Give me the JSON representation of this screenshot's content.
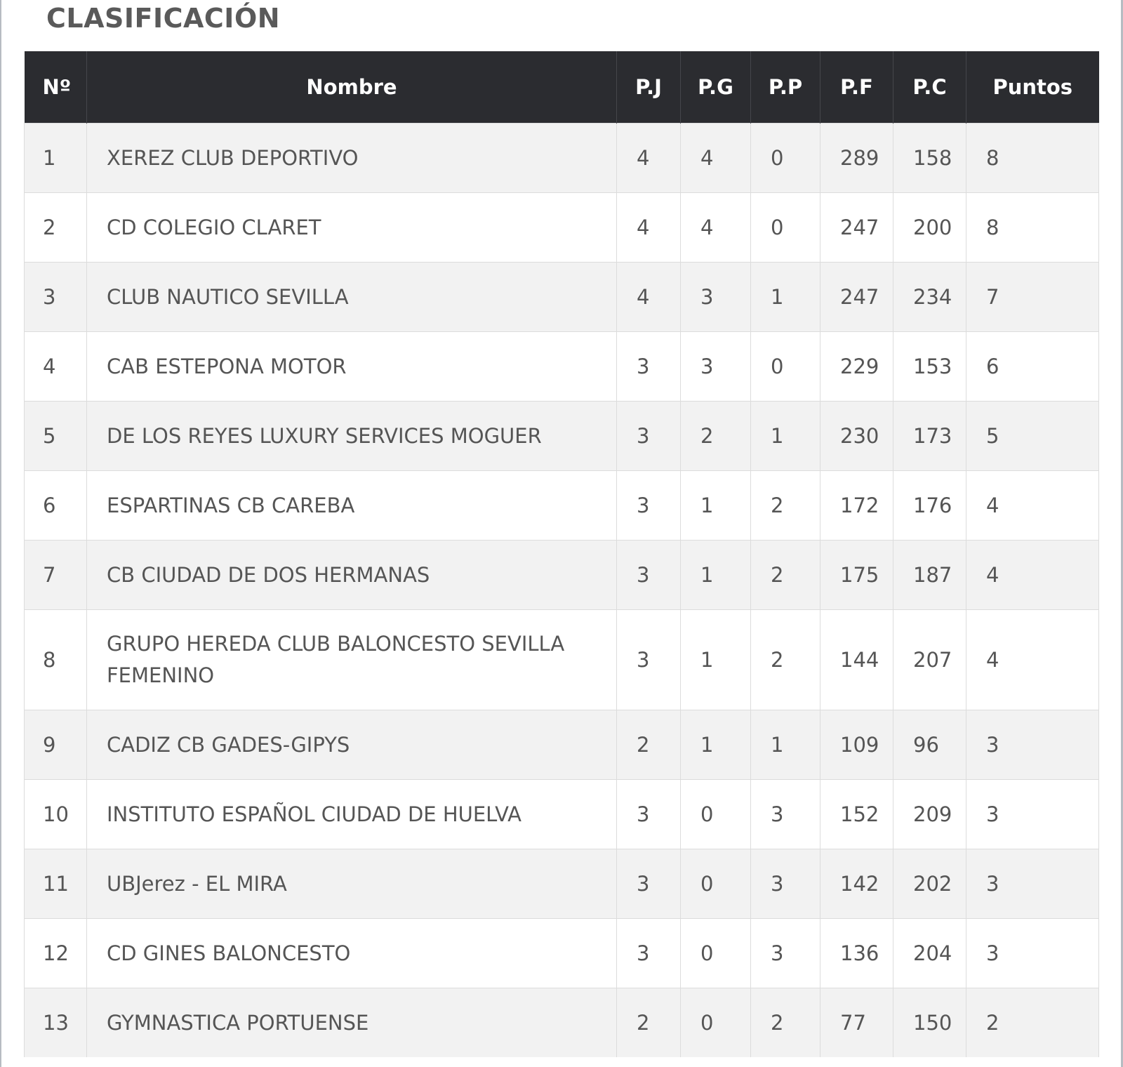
{
  "title": "CLASIFICACIÓN",
  "table": {
    "headers": [
      "Nº",
      "Nombre",
      "P.J",
      "P.G",
      "P.P",
      "P.F",
      "P.C",
      "Puntos"
    ],
    "rows": [
      [
        "1",
        "XEREZ CLUB DEPORTIVO",
        "4",
        "4",
        "0",
        "289",
        "158",
        "8"
      ],
      [
        "2",
        "CD COLEGIO CLARET",
        "4",
        "4",
        "0",
        "247",
        "200",
        "8"
      ],
      [
        "3",
        "CLUB NAUTICO SEVILLA",
        "4",
        "3",
        "1",
        "247",
        "234",
        "7"
      ],
      [
        "4",
        "CAB ESTEPONA MOTOR",
        "3",
        "3",
        "0",
        "229",
        "153",
        "6"
      ],
      [
        "5",
        "DE LOS REYES LUXURY SERVICES MOGUER",
        "3",
        "2",
        "1",
        "230",
        "173",
        "5"
      ],
      [
        "6",
        "ESPARTINAS CB CAREBA",
        "3",
        "1",
        "2",
        "172",
        "176",
        "4"
      ],
      [
        "7",
        "CB CIUDAD DE DOS HERMANAS",
        "3",
        "1",
        "2",
        "175",
        "187",
        "4"
      ],
      [
        "8",
        "GRUPO HEREDA CLUB BALONCESTO SEVILLA FEMENINO",
        "3",
        "1",
        "2",
        "144",
        "207",
        "4"
      ],
      [
        "9",
        "CADIZ CB GADES-GIPYS",
        "2",
        "1",
        "1",
        "109",
        "96",
        "3"
      ],
      [
        "10",
        "INSTITUTO ESPAÑOL CIUDAD DE HUELVA",
        "3",
        "0",
        "3",
        "152",
        "209",
        "3"
      ],
      [
        "11",
        "UBJerez - EL MIRA",
        "3",
        "0",
        "3",
        "142",
        "202",
        "3"
      ],
      [
        "12",
        "CD GINES BALONCESTO",
        "3",
        "0",
        "3",
        "136",
        "204",
        "3"
      ],
      [
        "13",
        "GYMNASTICA PORTUENSE",
        "2",
        "0",
        "2",
        "77",
        "150",
        "2"
      ]
    ]
  }
}
